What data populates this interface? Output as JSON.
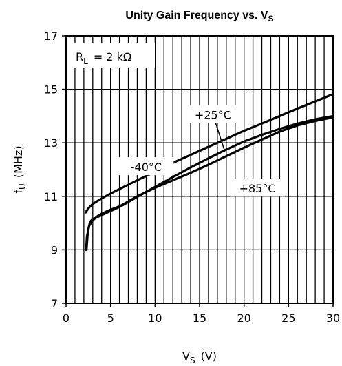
{
  "chart_data": {
    "type": "line",
    "title": "Unity Gain Frequency vs. V",
    "title_sub": "S",
    "xlabel": "V",
    "xlabel_sub": "S",
    "xlabel_unit": "(V)",
    "ylabel": "f",
    "ylabel_sub": "U",
    "ylabel_unit": "(MHz)",
    "xlim": [
      0,
      30
    ],
    "ylim": [
      7,
      17
    ],
    "x_ticks": [
      0,
      5,
      10,
      15,
      20,
      25,
      30
    ],
    "y_ticks": [
      7,
      9,
      11,
      13,
      15,
      17
    ],
    "x_minor_step": 1,
    "y_major_step": 2,
    "grid": true,
    "condition": {
      "name": "R",
      "sub": "L",
      "text": "= 2 kΩ"
    },
    "series": [
      {
        "name": "-40°C",
        "x": [
          2.2,
          2.5,
          3,
          4,
          5,
          6,
          8,
          10,
          12,
          14,
          16,
          18,
          20,
          22,
          24,
          26,
          28,
          30
        ],
        "y": [
          10.4,
          10.55,
          10.72,
          10.92,
          11.1,
          11.27,
          11.6,
          11.92,
          12.25,
          12.55,
          12.85,
          13.15,
          13.45,
          13.72,
          14.0,
          14.28,
          14.55,
          14.82
        ]
      },
      {
        "name": "+25°C",
        "x": [
          2.3,
          2.45,
          2.7,
          3,
          3.5,
          4,
          5,
          6,
          8,
          10,
          12,
          14,
          16,
          18,
          20,
          22,
          24,
          26,
          28,
          30
        ],
        "y": [
          9.0,
          9.7,
          10.05,
          10.15,
          10.22,
          10.3,
          10.45,
          10.6,
          10.98,
          11.35,
          11.72,
          12.08,
          12.42,
          12.75,
          13.05,
          13.3,
          13.52,
          13.72,
          13.88,
          14.0
        ]
      },
      {
        "name": "+85°C",
        "x": [
          2.25,
          2.35,
          2.6,
          3,
          3.5,
          4,
          5,
          6,
          8,
          10,
          12,
          14,
          16,
          18,
          20,
          22,
          24,
          26,
          28,
          30
        ],
        "y": [
          9.0,
          9.5,
          9.9,
          10.1,
          10.25,
          10.35,
          10.5,
          10.62,
          11.0,
          11.32,
          11.6,
          11.88,
          12.18,
          12.5,
          12.82,
          13.12,
          13.42,
          13.65,
          13.82,
          13.95
        ]
      }
    ],
    "labels": [
      {
        "text": "+25°C",
        "at": [
          16.5,
          14.05
        ]
      },
      {
        "text": "-40°C",
        "at": [
          9.0,
          12.1
        ]
      },
      {
        "text": "+85°C",
        "at": [
          21.5,
          11.3
        ]
      }
    ]
  }
}
